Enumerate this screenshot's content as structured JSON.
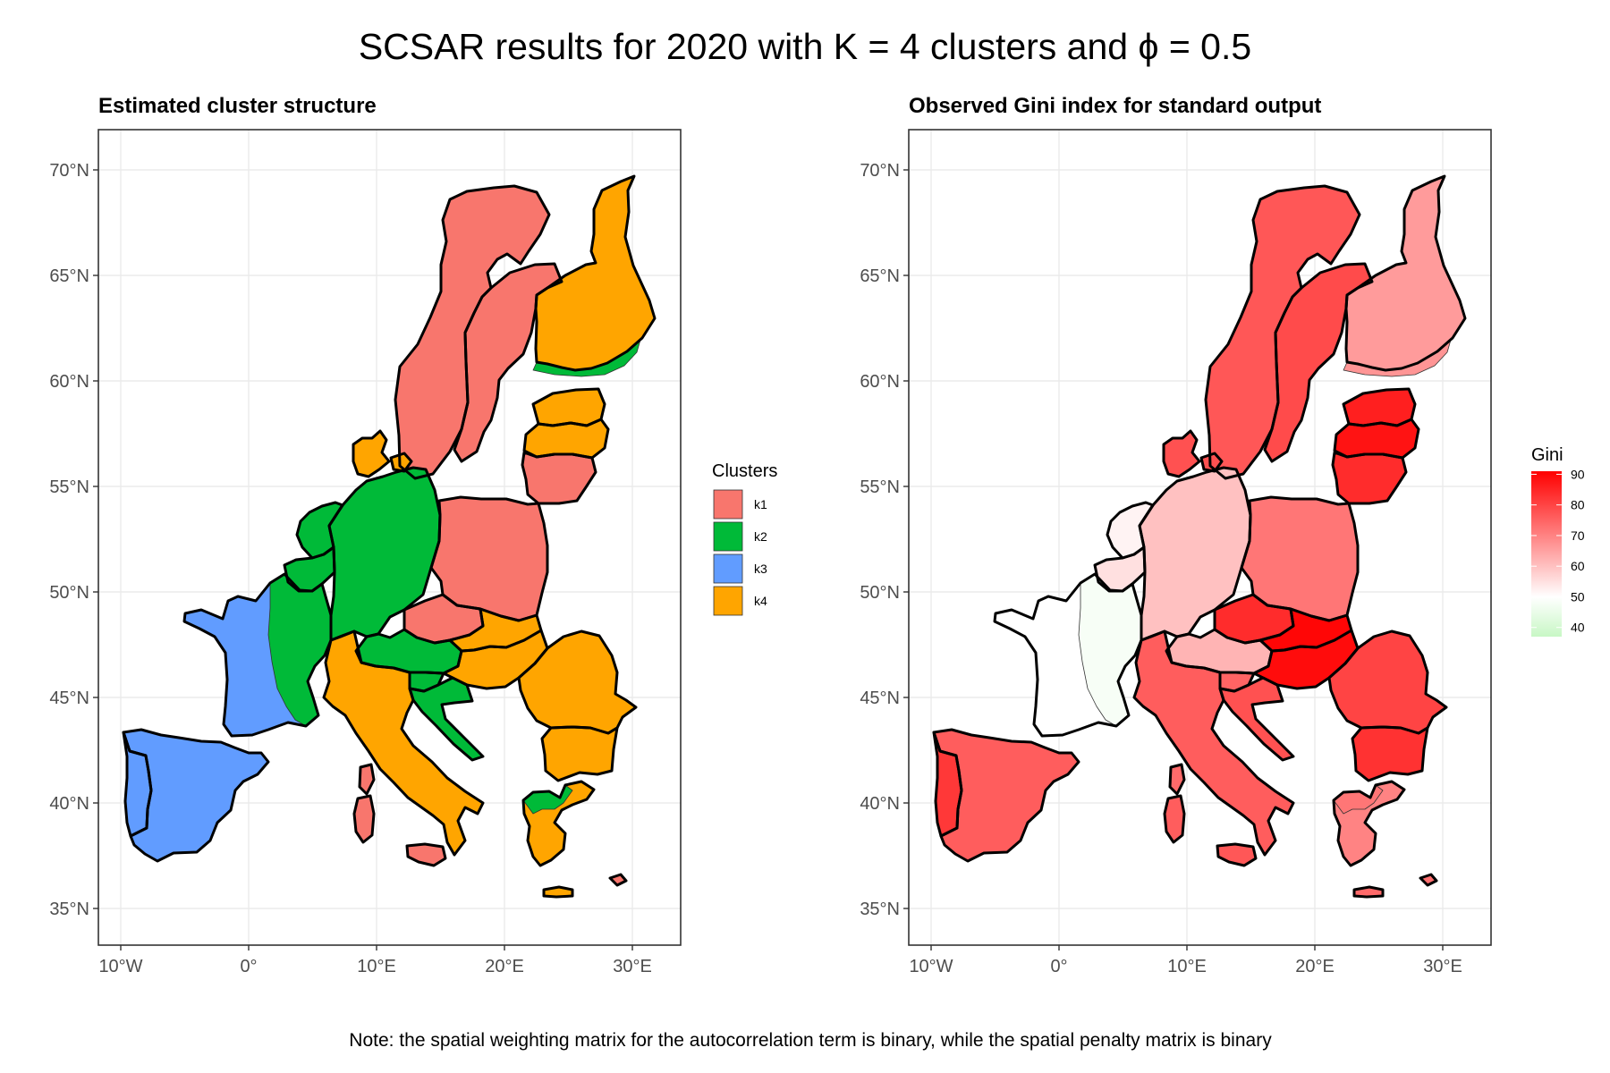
{
  "title": "SCSAR results for 2020 with K = 4 clusters and ϕ = 0.5",
  "note": "Note: the spatial weighting matrix for the autocorrelation term is binary, while the spatial penalty matrix is binary",
  "axes": {
    "x_ticks": [
      "10°W",
      "0°",
      "10°E",
      "20°E",
      "30°E"
    ],
    "y_ticks": [
      "70°N",
      "65°N",
      "60°N",
      "55°N",
      "50°N",
      "45°N",
      "40°N",
      "35°N"
    ]
  },
  "left_panel": {
    "title": "Estimated cluster structure",
    "legend_title": "Clusters",
    "legend": [
      {
        "label": "k1",
        "color": "#F8766D"
      },
      {
        "label": "k2",
        "color": "#00BA38"
      },
      {
        "label": "k3",
        "color": "#619CFF"
      },
      {
        "label": "k4",
        "color": "#FFA500"
      }
    ]
  },
  "right_panel": {
    "title": "Observed Gini index for standard output",
    "legend_title": "Gini",
    "scale": {
      "min": 37,
      "max": 91,
      "low_color": "#c8f7c5",
      "mid_color": "#ffffff",
      "high_color": "#ff0000",
      "breaks": [
        "90",
        "80",
        "70",
        "60",
        "50",
        "40"
      ]
    }
  },
  "map_data": {
    "regions": [
      {
        "name": "Norway",
        "cluster": "k1",
        "gini": 77
      },
      {
        "name": "Sweden",
        "cluster": "k1",
        "gini": 79
      },
      {
        "name": "Finland",
        "cluster": "k4",
        "gini": 66
      },
      {
        "name": "Finland south coast",
        "cluster": "k2",
        "gini": 67
      },
      {
        "name": "Estonia",
        "cluster": "k4",
        "gini": 86
      },
      {
        "name": "Latvia",
        "cluster": "k4",
        "gini": 88
      },
      {
        "name": "Lithuania",
        "cluster": "k1",
        "gini": 84
      },
      {
        "name": "Denmark",
        "cluster": "k4",
        "gini": 78
      },
      {
        "name": "Germany",
        "cluster": "k2",
        "gini": 60
      },
      {
        "name": "Netherlands",
        "cluster": "k2",
        "gini": 52
      },
      {
        "name": "Belgium",
        "cluster": "k2",
        "gini": 55
      },
      {
        "name": "Poland",
        "cluster": "k1",
        "gini": 72
      },
      {
        "name": "Czechia",
        "cluster": "k1",
        "gini": 84
      },
      {
        "name": "Slovakia",
        "cluster": "k4",
        "gini": 90
      },
      {
        "name": "Austria",
        "cluster": "k2",
        "gini": 62
      },
      {
        "name": "Hungary",
        "cluster": "k4",
        "gini": 89
      },
      {
        "name": "Slovenia",
        "cluster": "k2",
        "gini": 75
      },
      {
        "name": "Croatia",
        "cluster": "k2",
        "gini": 78
      },
      {
        "name": "Romania",
        "cluster": "k4",
        "gini": 80
      },
      {
        "name": "Bulgaria",
        "cluster": "k4",
        "gini": 83
      },
      {
        "name": "France",
        "cluster": "k3",
        "gini": 50
      },
      {
        "name": "France east",
        "cluster": "k2",
        "gini": 48
      },
      {
        "name": "Spain",
        "cluster": "k3",
        "gini": 76
      },
      {
        "name": "Portugal",
        "cluster": "k3",
        "gini": 82
      },
      {
        "name": "Italy",
        "cluster": "k4",
        "gini": 76
      },
      {
        "name": "Greece",
        "cluster": "k4",
        "gini": 70
      },
      {
        "name": "Greece north",
        "cluster": "k2",
        "gini": 72
      },
      {
        "name": "Corsica",
        "cluster": "k1",
        "gini": 74
      },
      {
        "name": "Sardinia",
        "cluster": "k1",
        "gini": 76
      },
      {
        "name": "Sicily",
        "cluster": "k1",
        "gini": 77
      },
      {
        "name": "Crete",
        "cluster": "k4",
        "gini": 74
      },
      {
        "name": "Cyprus",
        "cluster": "k1",
        "gini": 73
      }
    ]
  }
}
